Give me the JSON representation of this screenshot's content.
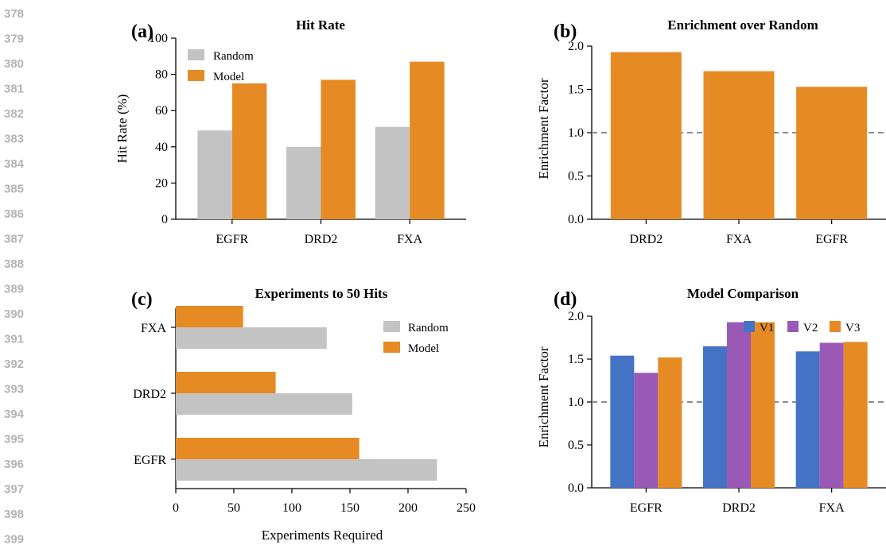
{
  "line_numbers": [
    "378",
    "379",
    "380",
    "381",
    "382",
    "383",
    "384",
    "385",
    "386",
    "387",
    "388",
    "389",
    "390",
    "391",
    "392",
    "393",
    "394",
    "395",
    "396",
    "397",
    "398",
    "399"
  ],
  "colors": {
    "random": "#c3c3c3",
    "model": "#e68a23",
    "v1": "#4472c4",
    "v2": "#9b59b6",
    "v3": "#e68a23",
    "reference_line": "#8c8c8c",
    "line_number_text": "#b3b3b3"
  },
  "panels": {
    "a": {
      "tag": "(a)"
    },
    "b": {
      "tag": "(b)"
    },
    "c": {
      "tag": "(c)"
    },
    "d": {
      "tag": "(d)"
    }
  },
  "chart_data": [
    {
      "id": "a",
      "type": "bar",
      "title": "Hit Rate",
      "xlabel": "",
      "ylabel": "Hit Rate (%)",
      "categories": [
        "EGFR",
        "DRD2",
        "FXA"
      ],
      "series": [
        {
          "name": "Random",
          "values": [
            49,
            40,
            51
          ]
        },
        {
          "name": "Model",
          "values": [
            75,
            77,
            87
          ]
        }
      ],
      "ylim": [
        0,
        100
      ],
      "yticks": [
        "0",
        "20",
        "40",
        "60",
        "80",
        "100"
      ],
      "legend_position": "top-left",
      "grid": false
    },
    {
      "id": "b",
      "type": "bar",
      "title": "Enrichment over Random",
      "xlabel": "",
      "ylabel": "Enrichment Factor",
      "categories": [
        "DRD2",
        "FXA",
        "EGFR"
      ],
      "values": [
        1.93,
        1.71,
        1.53
      ],
      "ylim": [
        0,
        2.0
      ],
      "yticks": [
        "0.0",
        "0.5",
        "1.0",
        "1.5",
        "2.0"
      ],
      "reference_line": 1.0,
      "grid": false
    },
    {
      "id": "c",
      "type": "bar",
      "orientation": "horizontal",
      "title": "Experiments to 50 Hits",
      "xlabel": "Experiments Required",
      "ylabel": "",
      "categories": [
        "EGFR",
        "DRD2",
        "FXA"
      ],
      "series": [
        {
          "name": "Random",
          "values": [
            225,
            152,
            130
          ]
        },
        {
          "name": "Model",
          "values": [
            158,
            86,
            58
          ]
        }
      ],
      "xlim": [
        0,
        250
      ],
      "xticks": [
        "0",
        "50",
        "100",
        "150",
        "200",
        "250"
      ],
      "legend_position": "top-right",
      "grid": false
    },
    {
      "id": "d",
      "type": "bar",
      "title": "Model Comparison",
      "xlabel": "",
      "ylabel": "Enrichment Factor",
      "categories": [
        "EGFR",
        "DRD2",
        "FXA"
      ],
      "series": [
        {
          "name": "V1",
          "values": [
            1.54,
            1.65,
            1.59
          ]
        },
        {
          "name": "V2",
          "values": [
            1.34,
            1.93,
            1.69
          ]
        },
        {
          "name": "V3",
          "values": [
            1.52,
            1.93,
            1.7
          ]
        }
      ],
      "ylim": [
        0,
        2.0
      ],
      "yticks": [
        "0.0",
        "0.5",
        "1.0",
        "1.5",
        "2.0"
      ],
      "reference_line": 1.0,
      "legend_position": "top-right",
      "grid": false
    }
  ]
}
